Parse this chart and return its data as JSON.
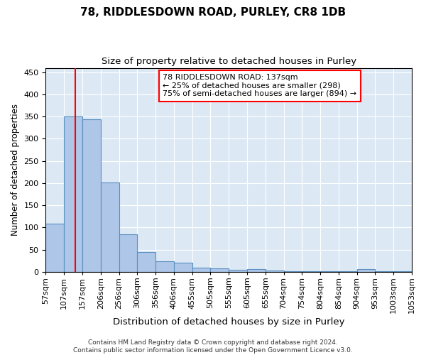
{
  "title": "78, RIDDLESDOWN ROAD, PURLEY, CR8 1DB",
  "subtitle": "Size of property relative to detached houses in Purley",
  "xlabel": "Distribution of detached houses by size in Purley",
  "ylabel": "Number of detached properties",
  "bar_labels": [
    "57sqm",
    "107sqm",
    "157sqm",
    "206sqm",
    "256sqm",
    "306sqm",
    "356sqm",
    "406sqm",
    "455sqm",
    "505sqm",
    "555sqm",
    "605sqm",
    "655sqm",
    "704sqm",
    "754sqm",
    "804sqm",
    "854sqm",
    "904sqm",
    "953sqm",
    "1003sqm",
    "1053sqm"
  ],
  "bar_values": [
    108,
    350,
    344,
    202,
    84,
    45,
    23,
    20,
    10,
    7,
    4,
    6,
    3,
    2,
    1,
    1,
    1,
    6,
    1,
    1
  ],
  "bar_color": "#aec6e8",
  "bar_edge_color": "#5a8fc0",
  "plot_bg_color": "#dce9f5",
  "annotation_line1": "78 RIDDLESDOWN ROAD: 137sqm",
  "annotation_line2": "← 25% of detached houses are smaller (298)",
  "annotation_line3": "75% of semi-detached houses are larger (894) →",
  "ylim": [
    0,
    460
  ],
  "yticks": [
    0,
    50,
    100,
    150,
    200,
    250,
    300,
    350,
    400,
    450
  ],
  "footer_line1": "Contains HM Land Registry data © Crown copyright and database right 2024.",
  "footer_line2": "Contains public sector information licensed under the Open Government Licence v3.0.",
  "title_fontsize": 11,
  "subtitle_fontsize": 9.5,
  "xlabel_fontsize": 9.5,
  "ylabel_fontsize": 8.5,
  "tick_fontsize": 8,
  "annotation_fontsize": 8,
  "footer_fontsize": 6.5
}
